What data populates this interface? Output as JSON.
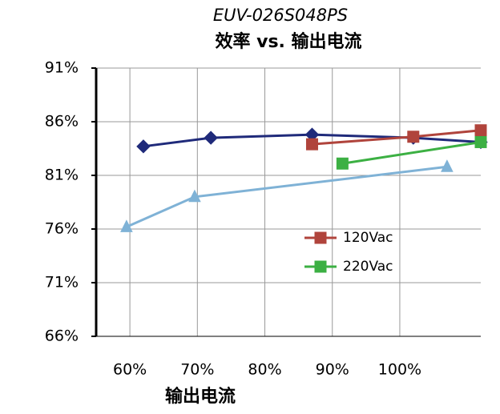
{
  "chart_data": {
    "type": "line",
    "title": "EUV-026S048PS",
    "subtitle": "效率 vs. 输出电流",
    "x_label": "输出电流",
    "xlim": [
      55,
      112
    ],
    "xticks": [
      {
        "value": 60,
        "label": "60%"
      },
      {
        "value": 70,
        "label": "70%"
      },
      {
        "value": 80,
        "label": "80%"
      },
      {
        "value": 90,
        "label": "90%"
      },
      {
        "value": 100,
        "label": "100%"
      }
    ],
    "ylim": [
      66,
      91
    ],
    "yticks": [
      {
        "value": 66,
        "label": "66%"
      },
      {
        "value": 71,
        "label": "71%"
      },
      {
        "value": 76,
        "label": "76%"
      },
      {
        "value": 81,
        "label": "81%"
      },
      {
        "value": 86,
        "label": "86%"
      },
      {
        "value": 91,
        "label": "91%"
      }
    ],
    "grid": true,
    "series": [
      {
        "color": "#1f2a7a",
        "marker": "diamond",
        "x": [
          62,
          72,
          87,
          102,
          112
        ],
        "values": [
          83.7,
          84.5,
          84.8,
          84.5,
          84.1
        ]
      },
      {
        "name": "120Vac",
        "color": "#b0443c",
        "marker": "square",
        "x": [
          87,
          102,
          112
        ],
        "values": [
          83.9,
          84.6,
          85.2
        ]
      },
      {
        "name": "220Vac",
        "color": "#3cb043",
        "marker": "square",
        "x": [
          91.5,
          112
        ],
        "values": [
          82.1,
          84.1
        ]
      },
      {
        "color": "#7fb2d6",
        "marker": "triangle",
        "x": [
          59.5,
          69.6,
          107
        ],
        "values": [
          76.2,
          79.0,
          81.8
        ]
      }
    ]
  }
}
